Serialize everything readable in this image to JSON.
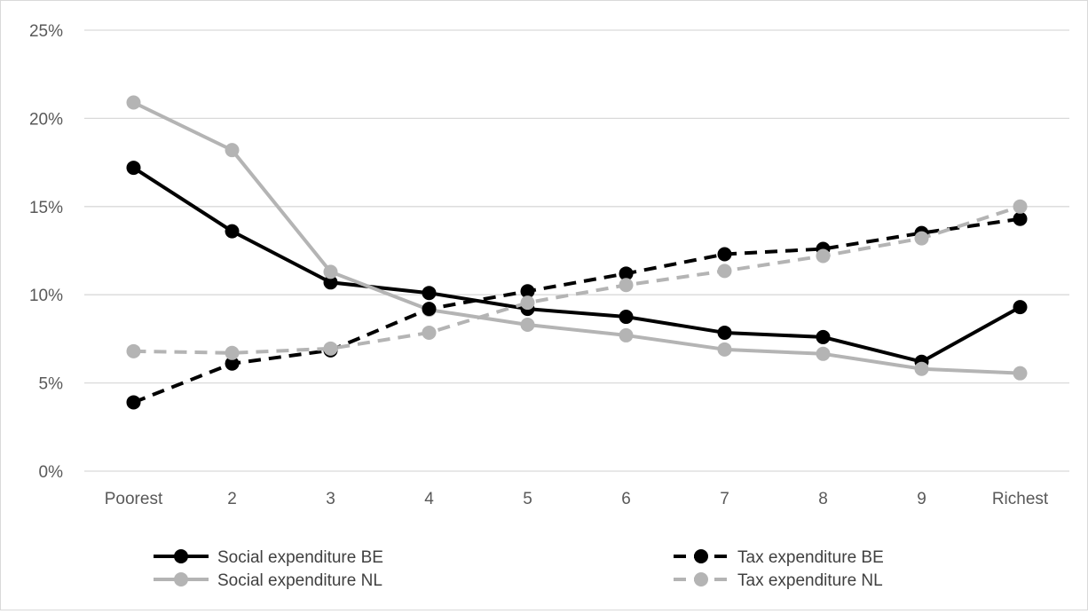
{
  "chart_data": {
    "type": "line",
    "categories": [
      "Poorest",
      "2",
      "3",
      "4",
      "5",
      "6",
      "7",
      "8",
      "9",
      "Richest"
    ],
    "ylim": [
      0,
      25
    ],
    "yticks": [
      0,
      5,
      10,
      15,
      20,
      25
    ],
    "ytick_labels": [
      "0%",
      "5%",
      "10%",
      "15%",
      "20%",
      "25%"
    ],
    "grid": true,
    "legend_position": "bottom",
    "series": [
      {
        "name": "Social expenditure BE",
        "values": [
          17.2,
          13.6,
          10.7,
          10.1,
          9.2,
          8.75,
          7.85,
          7.6,
          6.2,
          9.3
        ],
        "color": "#000000",
        "dashed": false
      },
      {
        "name": "Social expenditure NL",
        "values": [
          20.9,
          18.2,
          11.3,
          9.15,
          8.3,
          7.7,
          6.9,
          6.65,
          5.8,
          5.55
        ],
        "color": "#b4b4b4",
        "dashed": false
      },
      {
        "name": "Tax expenditure BE",
        "values": [
          3.9,
          6.1,
          6.85,
          9.2,
          10.2,
          11.2,
          12.3,
          12.6,
          13.5,
          14.3
        ],
        "color": "#000000",
        "dashed": true
      },
      {
        "name": "Tax expenditure NL",
        "values": [
          6.8,
          6.7,
          6.95,
          7.85,
          9.55,
          10.55,
          11.35,
          12.2,
          13.2,
          15.0
        ],
        "color": "#b4b4b4",
        "dashed": true
      }
    ]
  }
}
